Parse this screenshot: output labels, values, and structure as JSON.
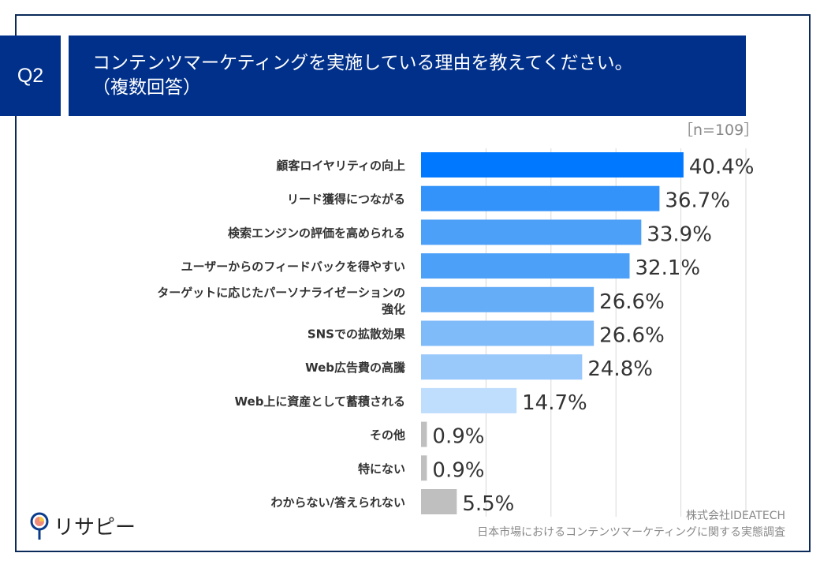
{
  "header": {
    "q": "Q2",
    "title_line1": "コンテンツマーケティングを実施している理由を教えてください。",
    "title_line2": "（複数回答）"
  },
  "sample": "［n=109］",
  "source": {
    "company": "株式会社IDEATECH",
    "survey": "日本市場におけるコンテンツマーケティングに関する実態調査"
  },
  "logo": {
    "text": "リサピー"
  },
  "chart_data": {
    "type": "bar",
    "orientation": "horizontal",
    "xlim": [
      0,
      50
    ],
    "grid": true,
    "categories": [
      "顧客ロイヤリティの向上",
      "リード獲得につながる",
      "検索エンジンの評価を高められる",
      "ユーザーからのフィードバックを得やすい",
      "ターゲットに応じたパーソナライゼーションの\n強化",
      "SNSでの拡散効果",
      "Web広告費の高騰",
      "Web上に資産として蓄積される",
      "その他",
      "特にない",
      "わからない/答えられない"
    ],
    "values": [
      40.4,
      36.7,
      33.9,
      32.1,
      26.6,
      26.6,
      24.8,
      14.7,
      0.9,
      0.9,
      5.5
    ],
    "value_labels": [
      "40.4%",
      "36.7%",
      "33.9%",
      "32.1%",
      "26.6%",
      "26.6%",
      "24.8%",
      "14.7%",
      "0.9%",
      "0.9%",
      "5.5%"
    ],
    "colors": [
      "#0078ff",
      "#3393fa",
      "#4da0f8",
      "#4da0f8",
      "#66adf8",
      "#7fbaf9",
      "#99c8fb",
      "#bfddfc",
      "#bfbfbf",
      "#bfbfbf",
      "#bfbfbf"
    ]
  }
}
